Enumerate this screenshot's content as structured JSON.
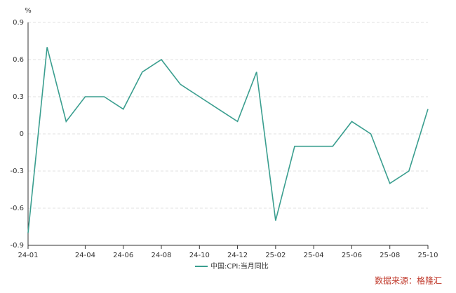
{
  "chart_data": {
    "type": "line",
    "y_label": "%",
    "categories": [
      "24-01",
      null,
      null,
      "24-04",
      null,
      "24-06",
      null,
      "24-08",
      null,
      "24-10",
      null,
      "24-12",
      null,
      "25-02",
      null,
      "25-04",
      null,
      "25-06",
      null,
      "25-08",
      null,
      "25-10"
    ],
    "series": [
      {
        "name": "中国:CPI:当月同比",
        "color": "#3a9e8f",
        "values": [
          -0.8,
          0.7,
          0.1,
          0.3,
          0.3,
          0.2,
          0.5,
          0.6,
          0.4,
          0.3,
          0.2,
          0.1,
          0.5,
          -0.7,
          -0.1,
          -0.1,
          -0.1,
          0.1,
          0.0,
          -0.4,
          -0.3,
          0.2
        ]
      }
    ],
    "ylim": [
      -0.9,
      0.9
    ],
    "yticks": [
      -0.9,
      -0.6,
      -0.3,
      0,
      0.3,
      0.6,
      0.9
    ],
    "grid": true,
    "source": "数据来源：格隆汇"
  }
}
